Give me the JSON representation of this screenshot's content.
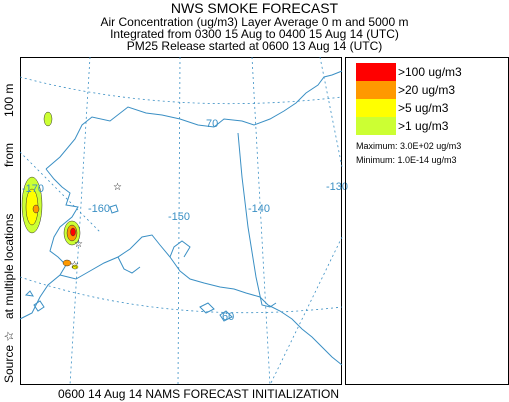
{
  "header": {
    "title": "NWS SMOKE FORECAST",
    "line1": "Air Concentration (ug/m3) Layer Average     0 m and  5000 m",
    "line2": "Integrated from 0300 15 Aug to 0400 15 Aug 14 (UTC)",
    "line3": "PM25 Release started at 0600 13 Aug 14 (UTC)"
  },
  "side_label": {
    "source": "Source ☆",
    "locations": "at multiple locations",
    "from": "from",
    "height": "100 m"
  },
  "footer": "0600 14 Aug 14 NAMS FORECAST INITIALIZATION",
  "legend": {
    "items": [
      {
        "label": ">100 ug/m3",
        "color": "#ff0000"
      },
      {
        "label": ">20 ug/m3",
        "color": "#ff9900"
      },
      {
        "label": ">5 ug/m3",
        "color": "#ffff00"
      },
      {
        "label": ">1 ug/m3",
        "color": "#ccff33"
      }
    ],
    "maximum": "Maximum: 3.0E+02 ug/m3",
    "minimum": "Minimum: 1.0E-14 ug/m3"
  },
  "map": {
    "longitude_labels": [
      "-170",
      "-160",
      "-150",
      "-140",
      "-130"
    ],
    "latitude_labels": [
      "70",
      "60"
    ],
    "source_marker": "☆",
    "colors": {
      "coast": "#3a8fc4",
      "grid": "#3a8fc4",
      "border": "#3a8fc4"
    }
  }
}
